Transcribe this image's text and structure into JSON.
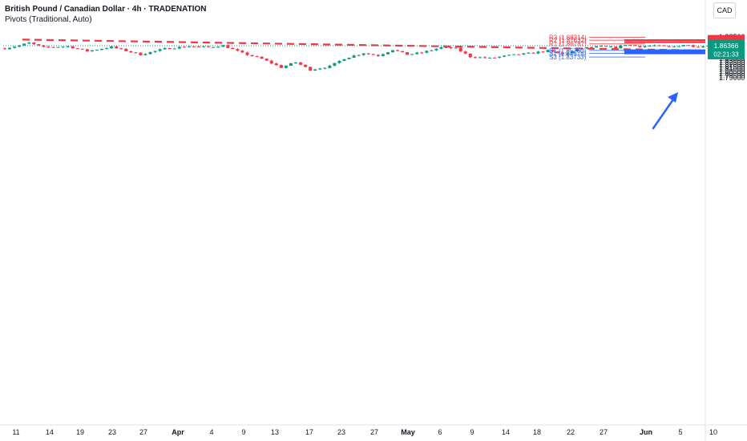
{
  "header": {
    "title": "British Pound / Canadian Dollar · 4h · TRADENATION",
    "indicator": "Pivots (Traditional, Auto)"
  },
  "currency_button": "CAD",
  "colors": {
    "up": "#089981",
    "down": "#f23645",
    "trendline": "#f23645",
    "resistance": "#f23645",
    "support": "#2962ff",
    "current_price": "#089981",
    "arrow": "#2962ff",
    "axis_text": "#131722"
  },
  "chart_data": {
    "type": "candlestick",
    "timeframe": "4h",
    "y_axis": {
      "ticks": [
        "1.88500",
        "1.88000",
        "1.87500",
        "1.87000",
        "1.86500",
        "1.86000",
        "1.85500",
        "1.85000",
        "1.84500",
        "1.84000",
        "1.83500",
        "1.83000",
        "1.82500",
        "1.82000",
        "1.81500",
        "1.81000",
        "1.80500",
        "1.80000",
        "1.79500",
        "1.79000"
      ],
      "range": [
        1.789,
        1.89
      ]
    },
    "x_axis": {
      "ticks": [
        "11",
        "14",
        "19",
        "23",
        "27",
        "Apr",
        "4",
        "9",
        "13",
        "17",
        "23",
        "27",
        "May",
        "6",
        "9",
        "14",
        "18",
        "22",
        "27",
        "Jun",
        "5",
        "10"
      ]
    },
    "price_path": [
      {
        "x": 0,
        "price": 1.8575
      },
      {
        "x": 3,
        "price": 1.864
      },
      {
        "x": 5,
        "price": 1.87
      },
      {
        "x": 8,
        "price": 1.8595
      },
      {
        "x": 13,
        "price": 1.862
      },
      {
        "x": 17,
        "price": 1.851
      },
      {
        "x": 22,
        "price": 1.8605
      },
      {
        "x": 28,
        "price": 1.843
      },
      {
        "x": 33,
        "price": 1.8565
      },
      {
        "x": 38,
        "price": 1.8625
      },
      {
        "x": 42,
        "price": 1.86
      },
      {
        "x": 45,
        "price": 1.864
      },
      {
        "x": 49,
        "price": 1.846
      },
      {
        "x": 53,
        "price": 1.833
      },
      {
        "x": 57,
        "price": 1.813
      },
      {
        "x": 60,
        "price": 1.825
      },
      {
        "x": 63,
        "price": 1.8075
      },
      {
        "x": 67,
        "price": 1.8155
      },
      {
        "x": 70,
        "price": 1.834
      },
      {
        "x": 74,
        "price": 1.8465
      },
      {
        "x": 77,
        "price": 1.8405
      },
      {
        "x": 80,
        "price": 1.8545
      },
      {
        "x": 83,
        "price": 1.843
      },
      {
        "x": 86,
        "price": 1.8475
      },
      {
        "x": 90,
        "price": 1.8595
      },
      {
        "x": 93,
        "price": 1.857
      },
      {
        "x": 96,
        "price": 1.838
      },
      {
        "x": 100,
        "price": 1.8345
      },
      {
        "x": 104,
        "price": 1.841
      },
      {
        "x": 108,
        "price": 1.8455
      },
      {
        "x": 112,
        "price": 1.852
      },
      {
        "x": 115,
        "price": 1.843
      },
      {
        "x": 119,
        "price": 1.858
      },
      {
        "x": 123,
        "price": 1.8615
      },
      {
        "x": 126,
        "price": 1.859
      },
      {
        "x": 128,
        "price": 1.8665
      },
      {
        "x": 131,
        "price": 1.862
      },
      {
        "x": 134,
        "price": 1.864
      },
      {
        "x": 137,
        "price": 1.86
      },
      {
        "x": 140,
        "price": 1.8655
      },
      {
        "x": 143,
        "price": 1.8615
      },
      {
        "x": 145,
        "price": 1.8637
      }
    ],
    "pivots": [
      {
        "label": "R3 (1.88314)",
        "value": 1.88314,
        "color": "#f23645"
      },
      {
        "label": "R2 (1.87632)",
        "value": 1.87632,
        "color": "#f23645"
      },
      {
        "label": "R1 (1.86787)",
        "value": 1.86787,
        "color": "#f23645"
      },
      {
        "label": "S1 (1.85260)",
        "value": 1.8526,
        "color": "#2962ff"
      },
      {
        "label": "S2 (1.84578)",
        "value": 1.84578,
        "color": "#2962ff"
      },
      {
        "label": "S3 (1.83733)",
        "value": 1.83733,
        "color": "#2962ff"
      }
    ],
    "levels": [
      {
        "value": 1.87639,
        "label": "1.87639",
        "color": "#f23645"
      },
      {
        "value": 1.87163,
        "label": "1.87163",
        "color": "#f23645"
      },
      {
        "value": 1.85283,
        "label": "1.85283",
        "color": "#2962ff"
      },
      {
        "value": 1.8492,
        "label": "1.84920",
        "color": "#2962ff"
      },
      {
        "value": 1.8458,
        "label": "1.84580",
        "color": "#2962ff"
      }
    ],
    "current_price": {
      "value": 1.86366,
      "label": "1.86366",
      "countdown": "02:21:33"
    },
    "trendline": {
      "from": {
        "x": 0,
        "price": 1.8778
      },
      "to": {
        "x": 128,
        "price": 1.8517
      }
    },
    "annotations": [
      "arrow pointing up toward resistance at 1.87163"
    ]
  }
}
